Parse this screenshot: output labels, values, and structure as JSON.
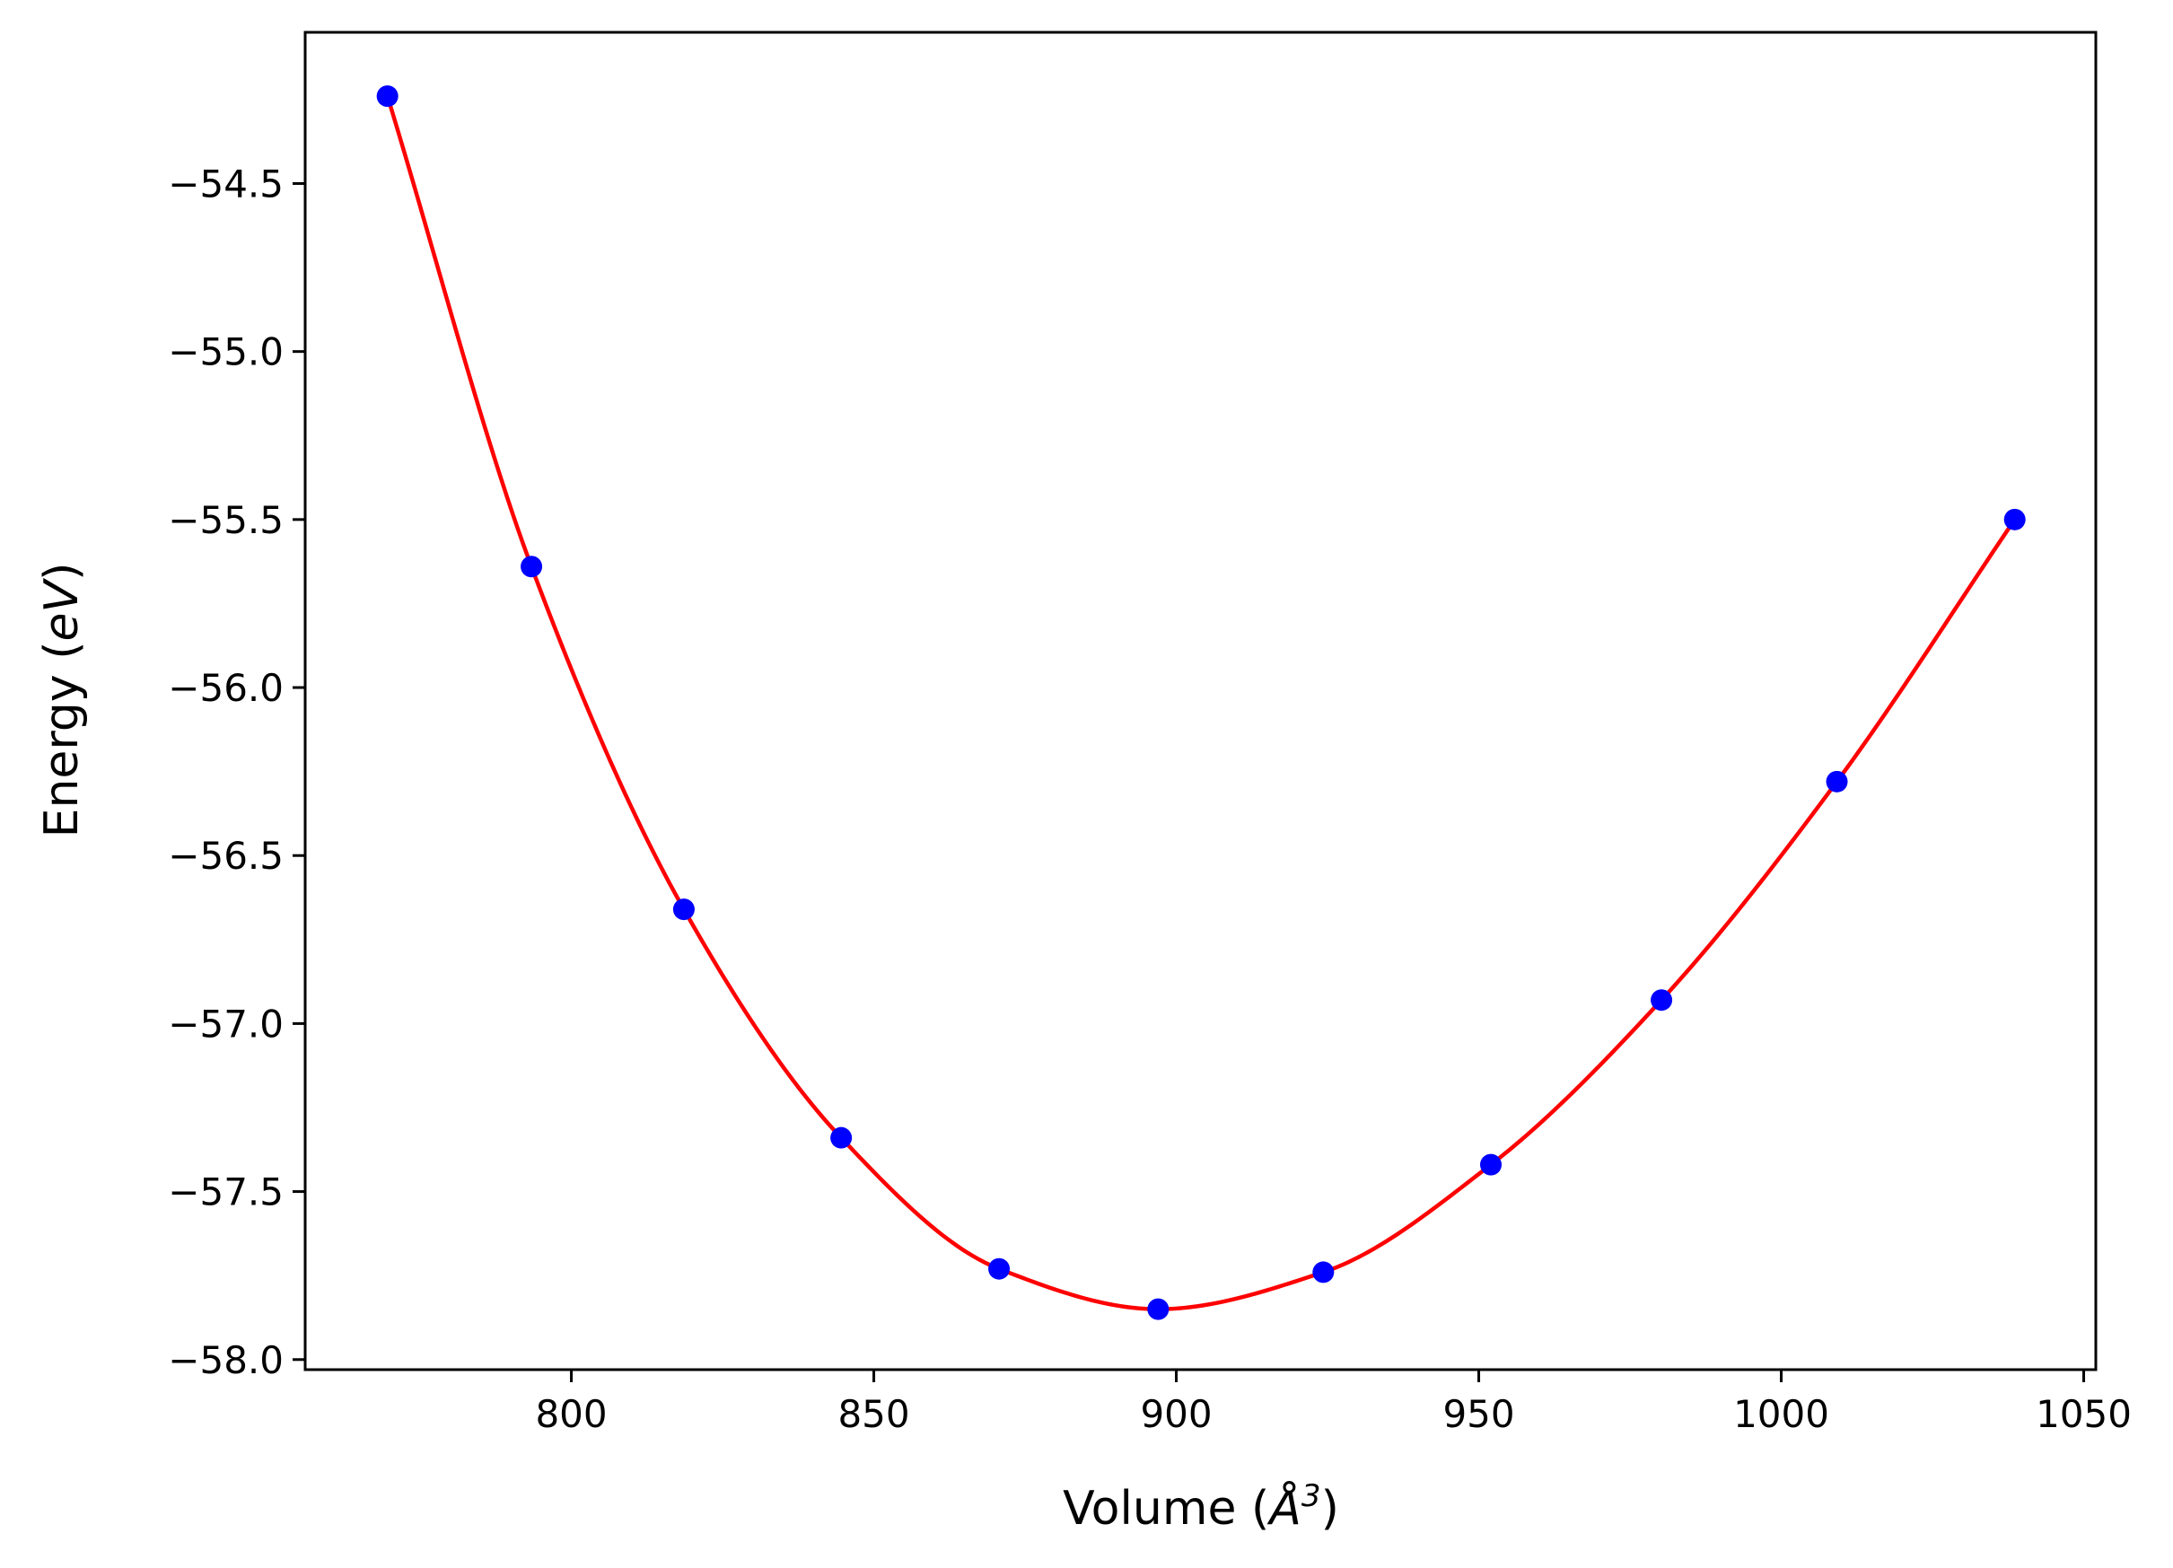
{
  "chart_data": {
    "type": "line",
    "xlabel": "Volume (",
    "xlabel_symbol": "Å",
    "xlabel_exponent": "3",
    "xlabel_close": ")",
    "ylabel": "Energy (",
    "ylabel_unit": "eV",
    "ylabel_close": ")",
    "xlim": [
      756,
      1052
    ],
    "ylim": [
      -58.03,
      -54.05
    ],
    "xticks": [
      800,
      850,
      900,
      950,
      1000,
      1050
    ],
    "xtick_labels": [
      "800",
      "850",
      "900",
      "950",
      "1000",
      "1050"
    ],
    "yticks": [
      -54.5,
      -55.0,
      -55.5,
      -56.0,
      -56.5,
      -57.0,
      -57.5,
      -58.0
    ],
    "ytick_labels": [
      "−54.5",
      "−55.0",
      "−55.5",
      "−56.0",
      "−56.5",
      "−57.0",
      "−57.5",
      "−58.0"
    ],
    "grid": false,
    "series": [
      {
        "kind": "points",
        "color": "#0000ff",
        "x": [
          769.6,
          793.4,
          818.6,
          844.6,
          870.7,
          897.0,
          924.3,
          952.0,
          980.2,
          1009.2,
          1038.6
        ],
        "y": [
          -54.24,
          -55.64,
          -56.66,
          -57.34,
          -57.73,
          -57.85,
          -57.74,
          -57.42,
          -56.93,
          -56.28,
          -55.5
        ]
      },
      {
        "kind": "fit",
        "color": "#ff0000",
        "x": [
          769.6,
          793.4,
          818.6,
          844.6,
          870.7,
          897.0,
          924.3,
          952.0,
          980.2,
          1009.2,
          1038.6
        ],
        "y": [
          -54.24,
          -55.64,
          -56.66,
          -57.34,
          -57.73,
          -57.85,
          -57.74,
          -57.42,
          -56.93,
          -56.28,
          -55.5
        ]
      }
    ]
  }
}
